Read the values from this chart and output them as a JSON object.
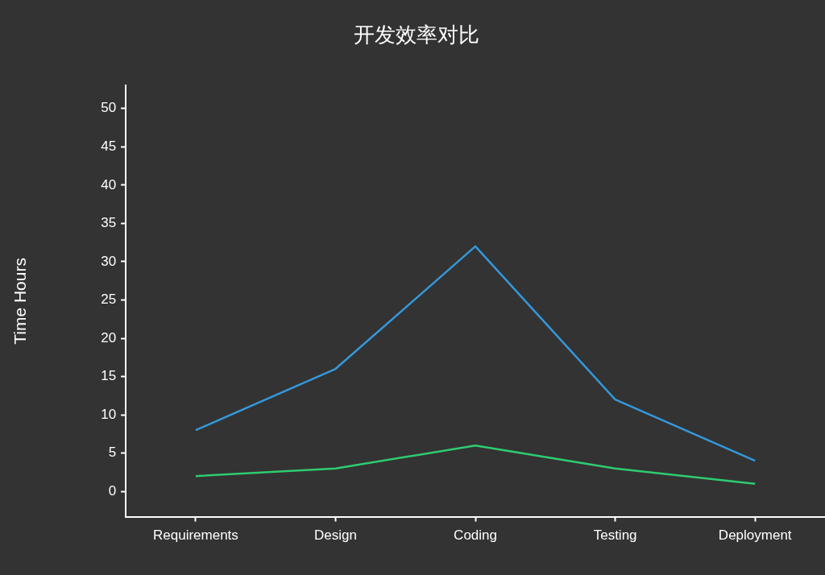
{
  "chart_data": {
    "type": "line",
    "title": "开发效率对比",
    "ylabel": "Time Hours",
    "categories": [
      "Requirements",
      "Design",
      "Coding",
      "Testing",
      "Deployment"
    ],
    "series": [
      {
        "color": "#3498db",
        "values": [
          8,
          16,
          32,
          12,
          4
        ]
      },
      {
        "color": "#2ecc71",
        "values": [
          2,
          3,
          6,
          3,
          1
        ]
      }
    ],
    "ylim": [
      -3.3,
      53
    ],
    "yticks": [
      0,
      5,
      10,
      15,
      20,
      25,
      30,
      35,
      40,
      45,
      50
    ],
    "grid": false,
    "legend": false,
    "marker": "none",
    "line_style": "solid"
  }
}
